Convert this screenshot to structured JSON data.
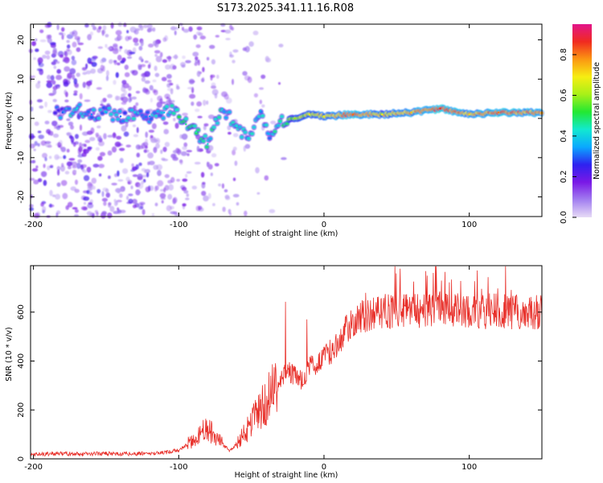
{
  "title": "S173.2025.341.11.16.R08",
  "colors": {
    "trace": "#e8302a",
    "frame": "#000000"
  },
  "chart_data": [
    {
      "type": "heatmap",
      "name": "spectrogram",
      "xlabel": "Height of straight line (km)",
      "ylabel": "Frequency (Hz)",
      "xlim": [
        -202,
        150
      ],
      "ylim": [
        -25,
        24
      ],
      "xticks": [
        -200,
        -100,
        0,
        100
      ],
      "yticks": [
        -20,
        -10,
        0,
        10,
        20
      ],
      "colorbar": {
        "label": "Normalized spectral amplitude",
        "range": [
          0,
          0.95
        ],
        "ticks": [
          "0.0",
          "0.2",
          "0.4",
          "0.6",
          "0.8"
        ],
        "colormap": [
          "#e7dbf6",
          "#a27ef0",
          "#7a18e6",
          "#2e22f0",
          "#0aa8ff",
          "#12e9d0",
          "#22e832",
          "#a8f018",
          "#f6ee12",
          "#fb9712",
          "#f02a20",
          "#e2148a"
        ]
      },
      "ridge": [
        {
          "x": -180,
          "f": 1.5,
          "a": 0.32
        },
        {
          "x": -170,
          "f": 2.5,
          "a": 0.45
        },
        {
          "x": -160,
          "f": 1.0,
          "a": 0.35
        },
        {
          "x": -150,
          "f": 1.5,
          "a": 0.38
        },
        {
          "x": -140,
          "f": 0.5,
          "a": 0.33
        },
        {
          "x": -130,
          "f": 1.5,
          "a": 0.4
        },
        {
          "x": -120,
          "f": 0.5,
          "a": 0.35
        },
        {
          "x": -110,
          "f": 1.5,
          "a": 0.4
        },
        {
          "x": -102,
          "f": 2.0,
          "a": 0.45
        },
        {
          "x": -95,
          "f": -1.5,
          "a": 0.5
        },
        {
          "x": -88,
          "f": -3.5,
          "a": 0.48
        },
        {
          "x": -80,
          "f": -6.5,
          "a": 0.45
        },
        {
          "x": -70,
          "f": 2.5,
          "a": 0.42
        },
        {
          "x": -60,
          "f": -2.0,
          "a": 0.45
        },
        {
          "x": -52,
          "f": -5.0,
          "a": 0.42
        },
        {
          "x": -44,
          "f": 2.0,
          "a": 0.4
        },
        {
          "x": -38,
          "f": -4.0,
          "a": 0.38
        },
        {
          "x": -30,
          "f": -1.0,
          "a": 0.45
        },
        {
          "x": -20,
          "f": 0.0,
          "a": 0.62
        },
        {
          "x": -10,
          "f": 1.0,
          "a": 0.7
        },
        {
          "x": 0,
          "f": 0.5,
          "a": 0.72
        },
        {
          "x": 20,
          "f": 1.0,
          "a": 0.85
        },
        {
          "x": 40,
          "f": 1.0,
          "a": 0.72
        },
        {
          "x": 60,
          "f": 1.5,
          "a": 0.78
        },
        {
          "x": 80,
          "f": 2.5,
          "a": 0.9
        },
        {
          "x": 100,
          "f": 1.0,
          "a": 0.75
        },
        {
          "x": 120,
          "f": 1.5,
          "a": 0.85
        },
        {
          "x": 150,
          "f": 1.5,
          "a": 0.8
        }
      ]
    },
    {
      "type": "line",
      "name": "snr",
      "xlabel": "Height of straight line (km)",
      "ylabel": "SNR (10 * v/v)",
      "xlim": [
        -202,
        150
      ],
      "ylim": [
        0,
        790
      ],
      "xticks": [
        -200,
        -100,
        0,
        100
      ],
      "yticks": [
        0,
        200,
        400,
        600
      ],
      "series": [
        {
          "name": "SNR",
          "x": [
            -202,
            -190,
            -180,
            -170,
            -160,
            -150,
            -140,
            -130,
            -120,
            -110,
            -100,
            -95,
            -90,
            -85,
            -80,
            -75,
            -70,
            -65,
            -60,
            -55,
            -50,
            -45,
            -40,
            -35,
            -30,
            -25,
            -20,
            -15,
            -10,
            -5,
            0,
            5,
            10,
            15,
            20,
            25,
            30,
            40,
            50,
            60,
            70,
            80,
            90,
            100,
            110,
            120,
            130,
            140,
            150
          ],
          "y": [
            18,
            20,
            22,
            20,
            21,
            22,
            20,
            21,
            22,
            25,
            35,
            55,
            80,
            105,
            125,
            100,
            60,
            35,
            60,
            100,
            145,
            190,
            230,
            275,
            320,
            360,
            340,
            320,
            380,
            380,
            430,
            440,
            470,
            530,
            560,
            580,
            590,
            600,
            610,
            605,
            600,
            615,
            610,
            605,
            600,
            605,
            600,
            598,
            600
          ]
        }
      ]
    }
  ]
}
